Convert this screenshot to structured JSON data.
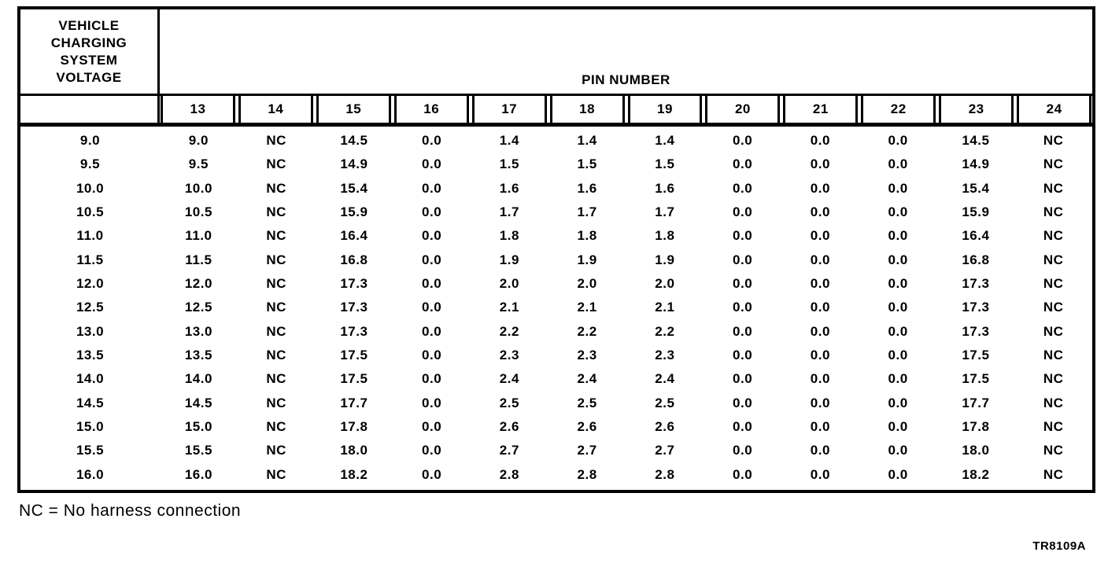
{
  "page": {
    "background_color": "#ffffff",
    "ink_color": "#000000",
    "caption": "NC = No harness connection",
    "doc_code": "TR8109A"
  },
  "table": {
    "row_header_title": "VEHICLE\nCHARGING\nSYSTEM\nVOLTAGE",
    "col_group_title": "PIN NUMBER",
    "pin_numbers": [
      "13",
      "14",
      "15",
      "16",
      "17",
      "18",
      "19",
      "20",
      "21",
      "22",
      "23",
      "24"
    ],
    "rows": [
      {
        "voltage": "9.0",
        "pins": [
          "9.0",
          "NC",
          "14.5",
          "0.0",
          "1.4",
          "1.4",
          "1.4",
          "0.0",
          "0.0",
          "0.0",
          "14.5",
          "NC"
        ]
      },
      {
        "voltage": "9.5",
        "pins": [
          "9.5",
          "NC",
          "14.9",
          "0.0",
          "1.5",
          "1.5",
          "1.5",
          "0.0",
          "0.0",
          "0.0",
          "14.9",
          "NC"
        ]
      },
      {
        "voltage": "10.0",
        "pins": [
          "10.0",
          "NC",
          "15.4",
          "0.0",
          "1.6",
          "1.6",
          "1.6",
          "0.0",
          "0.0",
          "0.0",
          "15.4",
          "NC"
        ]
      },
      {
        "voltage": "10.5",
        "pins": [
          "10.5",
          "NC",
          "15.9",
          "0.0",
          "1.7",
          "1.7",
          "1.7",
          "0.0",
          "0.0",
          "0.0",
          "15.9",
          "NC"
        ]
      },
      {
        "voltage": "11.0",
        "pins": [
          "11.0",
          "NC",
          "16.4",
          "0.0",
          "1.8",
          "1.8",
          "1.8",
          "0.0",
          "0.0",
          "0.0",
          "16.4",
          "NC"
        ]
      },
      {
        "voltage": "11.5",
        "pins": [
          "11.5",
          "NC",
          "16.8",
          "0.0",
          "1.9",
          "1.9",
          "1.9",
          "0.0",
          "0.0",
          "0.0",
          "16.8",
          "NC"
        ]
      },
      {
        "voltage": "12.0",
        "pins": [
          "12.0",
          "NC",
          "17.3",
          "0.0",
          "2.0",
          "2.0",
          "2.0",
          "0.0",
          "0.0",
          "0.0",
          "17.3",
          "NC"
        ]
      },
      {
        "voltage": "12.5",
        "pins": [
          "12.5",
          "NC",
          "17.3",
          "0.0",
          "2.1",
          "2.1",
          "2.1",
          "0.0",
          "0.0",
          "0.0",
          "17.3",
          "NC"
        ]
      },
      {
        "voltage": "13.0",
        "pins": [
          "13.0",
          "NC",
          "17.3",
          "0.0",
          "2.2",
          "2.2",
          "2.2",
          "0.0",
          "0.0",
          "0.0",
          "17.3",
          "NC"
        ]
      },
      {
        "voltage": "13.5",
        "pins": [
          "13.5",
          "NC",
          "17.5",
          "0.0",
          "2.3",
          "2.3",
          "2.3",
          "0.0",
          "0.0",
          "0.0",
          "17.5",
          "NC"
        ]
      },
      {
        "voltage": "14.0",
        "pins": [
          "14.0",
          "NC",
          "17.5",
          "0.0",
          "2.4",
          "2.4",
          "2.4",
          "0.0",
          "0.0",
          "0.0",
          "17.5",
          "NC"
        ]
      },
      {
        "voltage": "14.5",
        "pins": [
          "14.5",
          "NC",
          "17.7",
          "0.0",
          "2.5",
          "2.5",
          "2.5",
          "0.0",
          "0.0",
          "0.0",
          "17.7",
          "NC"
        ]
      },
      {
        "voltage": "15.0",
        "pins": [
          "15.0",
          "NC",
          "17.8",
          "0.0",
          "2.6",
          "2.6",
          "2.6",
          "0.0",
          "0.0",
          "0.0",
          "17.8",
          "NC"
        ]
      },
      {
        "voltage": "15.5",
        "pins": [
          "15.5",
          "NC",
          "18.0",
          "0.0",
          "2.7",
          "2.7",
          "2.7",
          "0.0",
          "0.0",
          "0.0",
          "18.0",
          "NC"
        ]
      },
      {
        "voltage": "16.0",
        "pins": [
          "16.0",
          "NC",
          "18.2",
          "0.0",
          "2.8",
          "2.8",
          "2.8",
          "0.0",
          "0.0",
          "0.0",
          "18.2",
          "NC"
        ]
      }
    ]
  }
}
